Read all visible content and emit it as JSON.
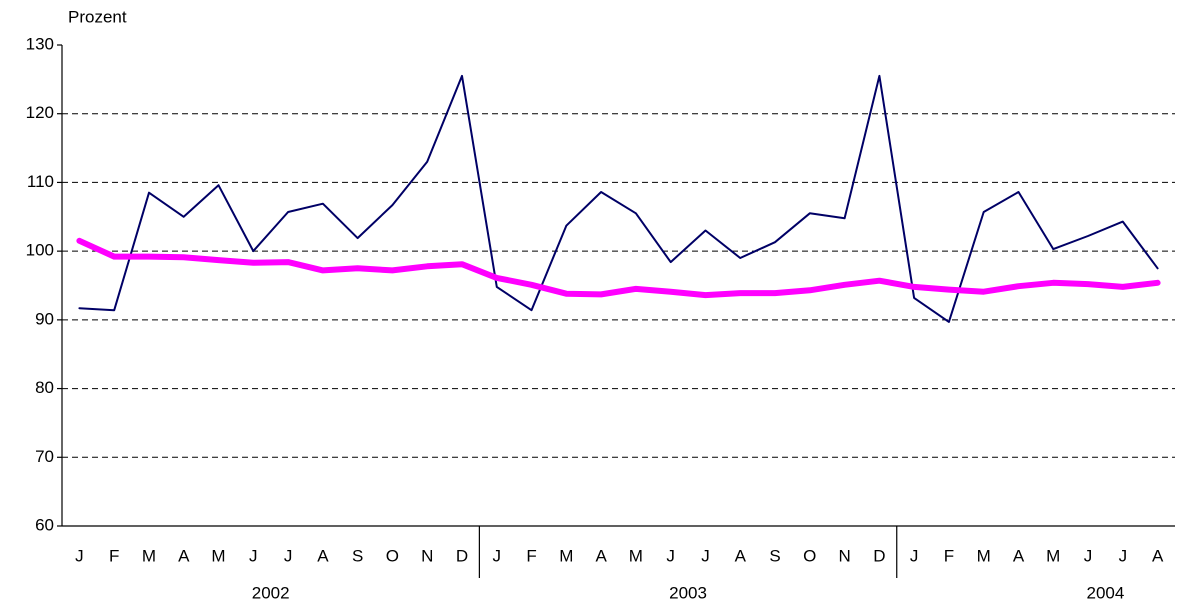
{
  "chart_data": {
    "type": "line",
    "y_label": "Prozent",
    "categories": [
      "J",
      "F",
      "M",
      "A",
      "M",
      "J",
      "J",
      "A",
      "S",
      "O",
      "N",
      "D",
      "J",
      "F",
      "M",
      "A",
      "M",
      "J",
      "J",
      "A",
      "S",
      "O",
      "N",
      "D",
      "J",
      "F",
      "M",
      "A",
      "M",
      "J",
      "J",
      "A"
    ],
    "years": [
      "2002",
      "2003",
      "2004"
    ],
    "series": [
      {
        "color": "#000066",
        "width": 2,
        "values": [
          91.7,
          91.4,
          108.5,
          105,
          109.6,
          100,
          105.7,
          106.9,
          101.9,
          106.7,
          113,
          125.5,
          94.8,
          91.4,
          103.7,
          108.6,
          105.5,
          98.4,
          103,
          99,
          101.3,
          105.5,
          104.8,
          125.5,
          93.2,
          89.7,
          105.7,
          108.6,
          100.3,
          102.2,
          104.3,
          97.5
        ]
      },
      {
        "color": "#ff00ff",
        "width": 6,
        "values": [
          101.5,
          99.2,
          99.2,
          99.1,
          98.7,
          98.3,
          98.4,
          97.2,
          97.5,
          97.2,
          97.8,
          98.1,
          96.1,
          95.1,
          93.8,
          93.7,
          94.5,
          94.1,
          93.6,
          93.9,
          93.9,
          94.3,
          95.1,
          95.7,
          94.8,
          94.4,
          94.1,
          94.9,
          95.4,
          95.2,
          94.8,
          95.4
        ]
      }
    ],
    "ylim": [
      60,
      130
    ],
    "yticks": [
      60,
      70,
      80,
      90,
      100,
      110,
      120,
      130
    ],
    "grid": true
  }
}
